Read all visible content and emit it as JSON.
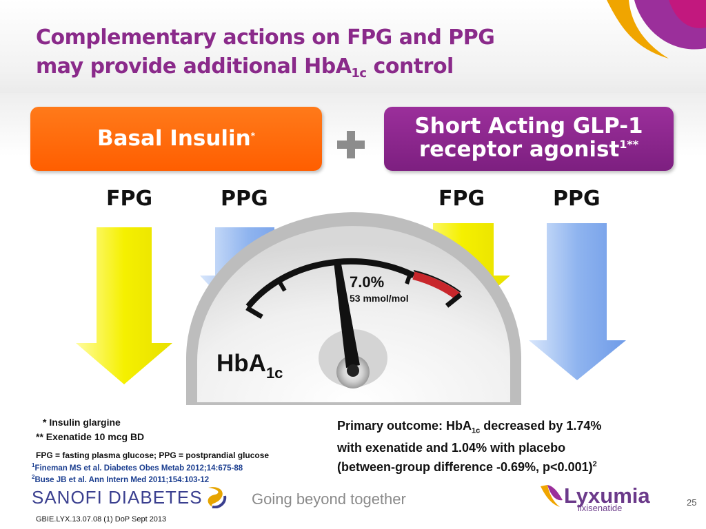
{
  "title": {
    "line1": "Complementary actions on FPG and PPG",
    "line2_pre": "may provide additional HbA",
    "line2_sub": "1c",
    "line2_post": " control"
  },
  "boxes": {
    "basal": {
      "label": "Basal Insulin",
      "mark": "*",
      "color": "#ff6a0a"
    },
    "glp": {
      "line1": "Short Acting GLP-1",
      "line2": "receptor agonist",
      "mark": "1**",
      "color": "#8a2a8a"
    }
  },
  "plus_sign": "+",
  "columns": {
    "basal_fpg": "FPG",
    "basal_ppg": "PPG",
    "glp_fpg": "FPG",
    "glp_ppg": "PPG"
  },
  "arrow_colors": {
    "fpg": "#f5f000",
    "ppg": "#6f9be8"
  },
  "gauge": {
    "value": "7.0%",
    "unit": "53 mmol/mol",
    "label": "HbA",
    "label_sub": "1c",
    "zone_color": "#c8262b"
  },
  "footnotes": {
    "glargine": "* Insulin glargine",
    "exenatide": "** Exenatide 10 mcg BD",
    "abbrev": "FPG = fasting plasma glucose;  PPG = postprandial glucose",
    "ref1_num": "1",
    "ref1": "Fineman MS et al.  Diabetes Obes Metab 2012;14:675-88",
    "ref2_num": "2",
    "ref2": "Buse JB et al. Ann Intern Med 2011;154:103-12"
  },
  "outcome": {
    "pre": "Primary outcome: HbA",
    "sub": "1c",
    "post": " decreased by 1.74%",
    "line2": "with exenatide and 1.04% with placebo",
    "line3": "(between-group difference -0.69%, p<0.001)",
    "sup": "2"
  },
  "branding": {
    "sanofi": "SANOFI",
    "diabetes": " DIABETES",
    "tagline": "Going beyond together",
    "lyxumia": "Lyxumia",
    "lixisenatide": "lixisenatide"
  },
  "page_number": "25",
  "doc_code": "GBIE.LYX.13.07.08  (1) DoP Sept 2013"
}
